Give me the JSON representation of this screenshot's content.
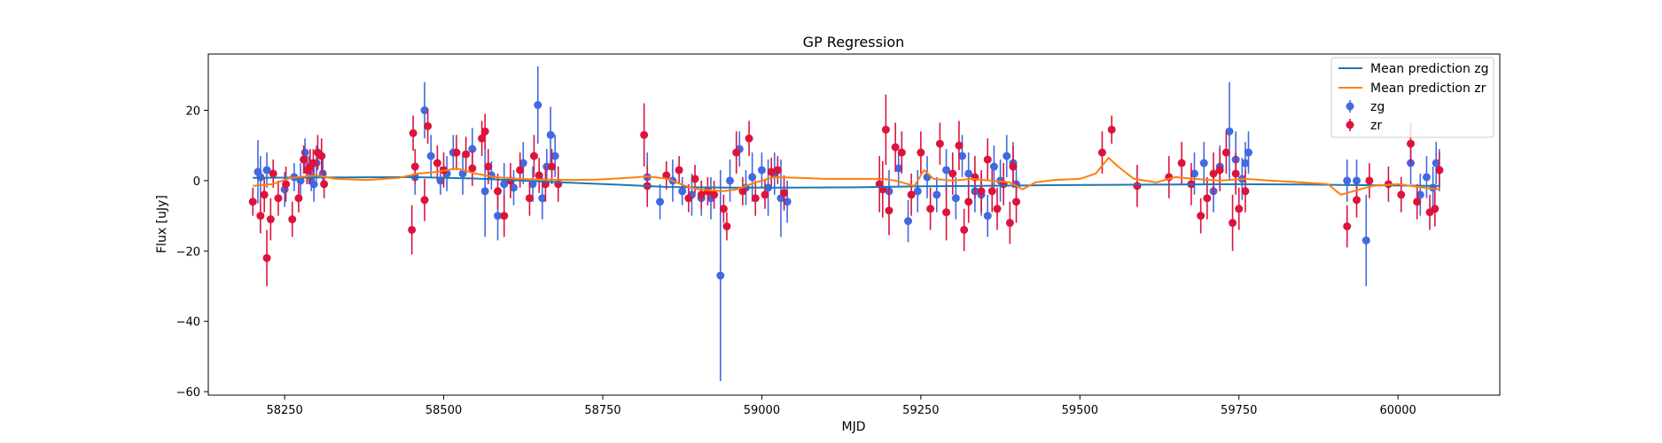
{
  "chart_data": {
    "type": "scatter",
    "title": "GP Regression",
    "xlabel": "MJD",
    "ylabel": "Flux [uJy]",
    "xlim": [
      58130,
      60160
    ],
    "ylim": [
      -61,
      36
    ],
    "xticks": [
      58250,
      58500,
      58750,
      59000,
      59250,
      59500,
      59750,
      60000
    ],
    "yticks": [
      -60,
      -40,
      -20,
      0,
      20
    ],
    "legend_position": "top-right",
    "grid": false,
    "colors": {
      "zg_points": "#4169e1",
      "zr_points": "#dc143c",
      "zg_line": "#1f77b4",
      "zr_line": "#ff7f0e"
    },
    "lines": [
      {
        "name": "Mean prediction zg",
        "color": "#1f77b4",
        "x": [
          58200,
          58300,
          58450,
          58550,
          58650,
          58780,
          58850,
          58950,
          59050,
          59150,
          59250,
          59350,
          59450,
          59550,
          59650,
          59750,
          59850,
          59950,
          60050,
          60065
        ],
        "y": [
          0.8,
          0.9,
          1.0,
          0.6,
          -0.2,
          -1.2,
          -1.8,
          -2.0,
          -2.0,
          -1.9,
          -1.6,
          -1.5,
          -1.3,
          -1.2,
          -1.1,
          -1.0,
          -1.1,
          -1.3,
          -1.5,
          -1.5
        ]
      },
      {
        "name": "Mean prediction zr",
        "color": "#ff7f0e",
        "x": [
          58200,
          58230,
          58260,
          58300,
          58330,
          58380,
          58430,
          58460,
          58490,
          58520,
          58550,
          58580,
          58620,
          58660,
          58700,
          58740,
          58790,
          58820,
          58850,
          58880,
          58900,
          58940,
          58960,
          58990,
          59020,
          59060,
          59100,
          59150,
          59190,
          59210,
          59240,
          59255,
          59270,
          59300,
          59330,
          59360,
          59390,
          59410,
          59430,
          59460,
          59500,
          59525,
          59545,
          59560,
          59585,
          59620,
          59650,
          59680,
          59720,
          59760,
          59800,
          59850,
          59890,
          59910,
          59930,
          59960,
          60000,
          60040,
          60065
        ],
        "y": [
          -1.5,
          -1.0,
          0.8,
          1.5,
          0.5,
          0.2,
          0.8,
          2.0,
          2.5,
          3.5,
          2.0,
          1.0,
          0.5,
          0.3,
          0.2,
          0.3,
          0.8,
          1.2,
          0.6,
          -1.5,
          -2.5,
          -3.0,
          -2.5,
          -0.5,
          1.0,
          0.8,
          0.5,
          0.5,
          0.5,
          0.0,
          -1.5,
          3.0,
          0.5,
          0.0,
          0.5,
          0.0,
          -0.5,
          -2.5,
          -0.5,
          0.2,
          0.5,
          2.0,
          6.5,
          4.0,
          0.5,
          -0.5,
          1.0,
          0.5,
          0.0,
          0.5,
          0.0,
          -0.5,
          -1.0,
          -4.0,
          -3.0,
          -1.5,
          -1.0,
          -2.0,
          -2.5
        ]
      }
    ],
    "series": [
      {
        "name": "zg",
        "color": "#4169e1",
        "x": [
          58208,
          58212,
          58222,
          58250,
          58265,
          58275,
          58282,
          58288,
          58292,
          58296,
          58300,
          58310,
          58455,
          58470,
          58480,
          58495,
          58505,
          58515,
          58530,
          58545,
          58565,
          58575,
          58585,
          58595,
          58610,
          58625,
          58640,
          58648,
          58655,
          58662,
          58668,
          58675,
          58820,
          58840,
          58860,
          58875,
          58890,
          58905,
          58920,
          58935,
          58950,
          58965,
          58975,
          58985,
          59000,
          59010,
          59020,
          59030,
          59040,
          59200,
          59215,
          59230,
          59245,
          59260,
          59275,
          59290,
          59305,
          59315,
          59325,
          59335,
          59345,
          59355,
          59365,
          59375,
          59385,
          59395,
          59400,
          59680,
          59695,
          59710,
          59720,
          59735,
          59745,
          59755,
          59760,
          59765,
          59920,
          59935,
          59950,
          60020,
          60035,
          60045,
          60055,
          60060,
          60065
        ],
        "y": [
          2.5,
          1.0,
          3.0,
          -2.5,
          1.0,
          0.0,
          8.0,
          3.0,
          1.0,
          -1.0,
          5.0,
          2.0,
          1.0,
          20.0,
          7.0,
          0.0,
          2.0,
          8.0,
          2.0,
          9.0,
          -3.0,
          1.5,
          -10.0,
          -1.0,
          -2.0,
          5.0,
          -1.0,
          21.5,
          -5.0,
          4.0,
          13.0,
          7.0,
          1.0,
          -6.0,
          0.0,
          -3.0,
          -4.0,
          -5.0,
          -5.0,
          -27.0,
          0.0,
          9.0,
          -2.0,
          1.0,
          3.0,
          -2.0,
          2.0,
          -5.0,
          -6.0,
          -3.0,
          3.5,
          -11.5,
          -3.0,
          1.0,
          -4.0,
          3.0,
          -5.0,
          7.0,
          2.0,
          -3.0,
          -4.0,
          -10.0,
          4.0,
          0.0,
          7.0,
          5.0,
          -1.0,
          2.0,
          5.0,
          -3.0,
          4.0,
          14.0,
          6.0,
          0.5,
          5.0,
          8.0,
          0.0,
          0.0,
          -17.0,
          5.0,
          -4.0,
          1.0,
          -2.0,
          5.0,
          3.0
        ],
        "yerr": [
          9,
          6,
          5,
          5,
          4,
          5,
          4,
          4,
          4,
          5,
          5,
          4,
          5,
          8,
          6,
          4,
          5,
          5,
          6,
          6,
          13,
          4,
          7,
          6,
          5,
          6,
          5,
          11,
          6,
          5,
          8,
          6,
          7,
          5,
          6,
          4,
          6,
          5,
          6,
          30,
          6,
          5,
          5,
          7,
          5,
          8,
          6,
          11,
          6,
          6,
          5,
          6,
          6,
          6,
          5,
          6,
          6,
          6,
          6,
          6,
          6,
          6,
          6,
          6,
          6,
          6,
          6,
          6,
          6,
          6,
          6,
          14,
          8,
          6,
          6,
          6,
          6,
          6,
          13,
          6,
          6,
          6,
          6,
          6,
          6
        ],
        "marker": "circle-with-errorbar"
      },
      {
        "name": "zr",
        "color": "#dc143c",
        "x": [
          58200,
          58212,
          58218,
          58222,
          58228,
          58232,
          58240,
          58252,
          58262,
          58272,
          58280,
          58285,
          58290,
          58295,
          58302,
          58308,
          58312,
          58450,
          58452,
          58455,
          58470,
          58475,
          58490,
          58500,
          58520,
          58535,
          58545,
          58560,
          58565,
          58570,
          58585,
          58595,
          58605,
          58620,
          58635,
          58642,
          58650,
          58660,
          58670,
          58680,
          58815,
          58820,
          58850,
          58870,
          58885,
          58895,
          58905,
          58915,
          58925,
          58940,
          58945,
          58960,
          58970,
          58980,
          58990,
          59005,
          59015,
          59025,
          59035,
          59185,
          59190,
          59195,
          59200,
          59210,
          59220,
          59235,
          59250,
          59265,
          59280,
          59290,
          59300,
          59310,
          59318,
          59325,
          59335,
          59345,
          59355,
          59362,
          59370,
          59380,
          59390,
          59395,
          59400,
          59535,
          59550,
          59590,
          59640,
          59660,
          59675,
          59690,
          59700,
          59710,
          59720,
          59730,
          59740,
          59745,
          59750,
          59760,
          59920,
          59935,
          59955,
          59985,
          60005,
          60020,
          60030,
          60050,
          60058,
          60065
        ],
        "y": [
          -6.0,
          -10.0,
          -4.0,
          -22.0,
          -11.0,
          2.0,
          -5.0,
          -1.0,
          -11.0,
          -5.0,
          6.0,
          3.0,
          4.0,
          5.0,
          8.0,
          7.0,
          -1.0,
          -14.0,
          13.5,
          4.0,
          -5.5,
          15.5,
          5.0,
          3.0,
          8.0,
          7.5,
          3.5,
          12.0,
          14.0,
          4.0,
          -3.0,
          -10.0,
          0.0,
          3.0,
          -5.0,
          7.0,
          1.5,
          -1.0,
          4.0,
          -1.0,
          13.0,
          -1.5,
          1.5,
          3.0,
          -5.0,
          0.5,
          -4.0,
          -3.0,
          -4.0,
          -8.0,
          -13.0,
          8.0,
          -3.0,
          12.0,
          -5.0,
          -4.0,
          2.5,
          3.0,
          -3.5,
          -1.0,
          -2.5,
          14.5,
          -8.5,
          9.5,
          8.0,
          -4.0,
          8.0,
          -8.0,
          10.5,
          -9.0,
          2.0,
          10.0,
          -14.0,
          -6.0,
          1.0,
          -3.0,
          6.0,
          -3.0,
          -8.0,
          -1.0,
          -12.0,
          4.0,
          -6.0,
          8.0,
          14.5,
          -1.5,
          1.0,
          5.0,
          -1.0,
          -10.0,
          -5.0,
          2.0,
          3.0,
          8.0,
          -12.0,
          2.0,
          -8.0,
          -3.0,
          -13.0,
          -5.5,
          0.0,
          -1.0,
          -4.0,
          10.5,
          -6.0,
          -9.0,
          -8.0,
          3.0
        ],
        "yerr": [
          4,
          5,
          5,
          8,
          6,
          4,
          5,
          5,
          5,
          4,
          4,
          4,
          5,
          4,
          5,
          5,
          4,
          7,
          5,
          5,
          6,
          5,
          5,
          5,
          5,
          5,
          5,
          5,
          5,
          5,
          5,
          6,
          5,
          5,
          5,
          6,
          5,
          5,
          5,
          5,
          9,
          6,
          4,
          4,
          4,
          4,
          4,
          4,
          4,
          4,
          4,
          6,
          4,
          5,
          5,
          4,
          4,
          4,
          5,
          8,
          8,
          10,
          7,
          7,
          6,
          6,
          6,
          6,
          6,
          8,
          6,
          7,
          6,
          6,
          6,
          6,
          6,
          6,
          6,
          6,
          6,
          6,
          6,
          6,
          4,
          6,
          6,
          6,
          6,
          5,
          6,
          6,
          6,
          6,
          8,
          6,
          6,
          6,
          6,
          5,
          5,
          5,
          5,
          6,
          5,
          5,
          5,
          5
        ],
        "marker": "circle-with-errorbar"
      }
    ]
  }
}
